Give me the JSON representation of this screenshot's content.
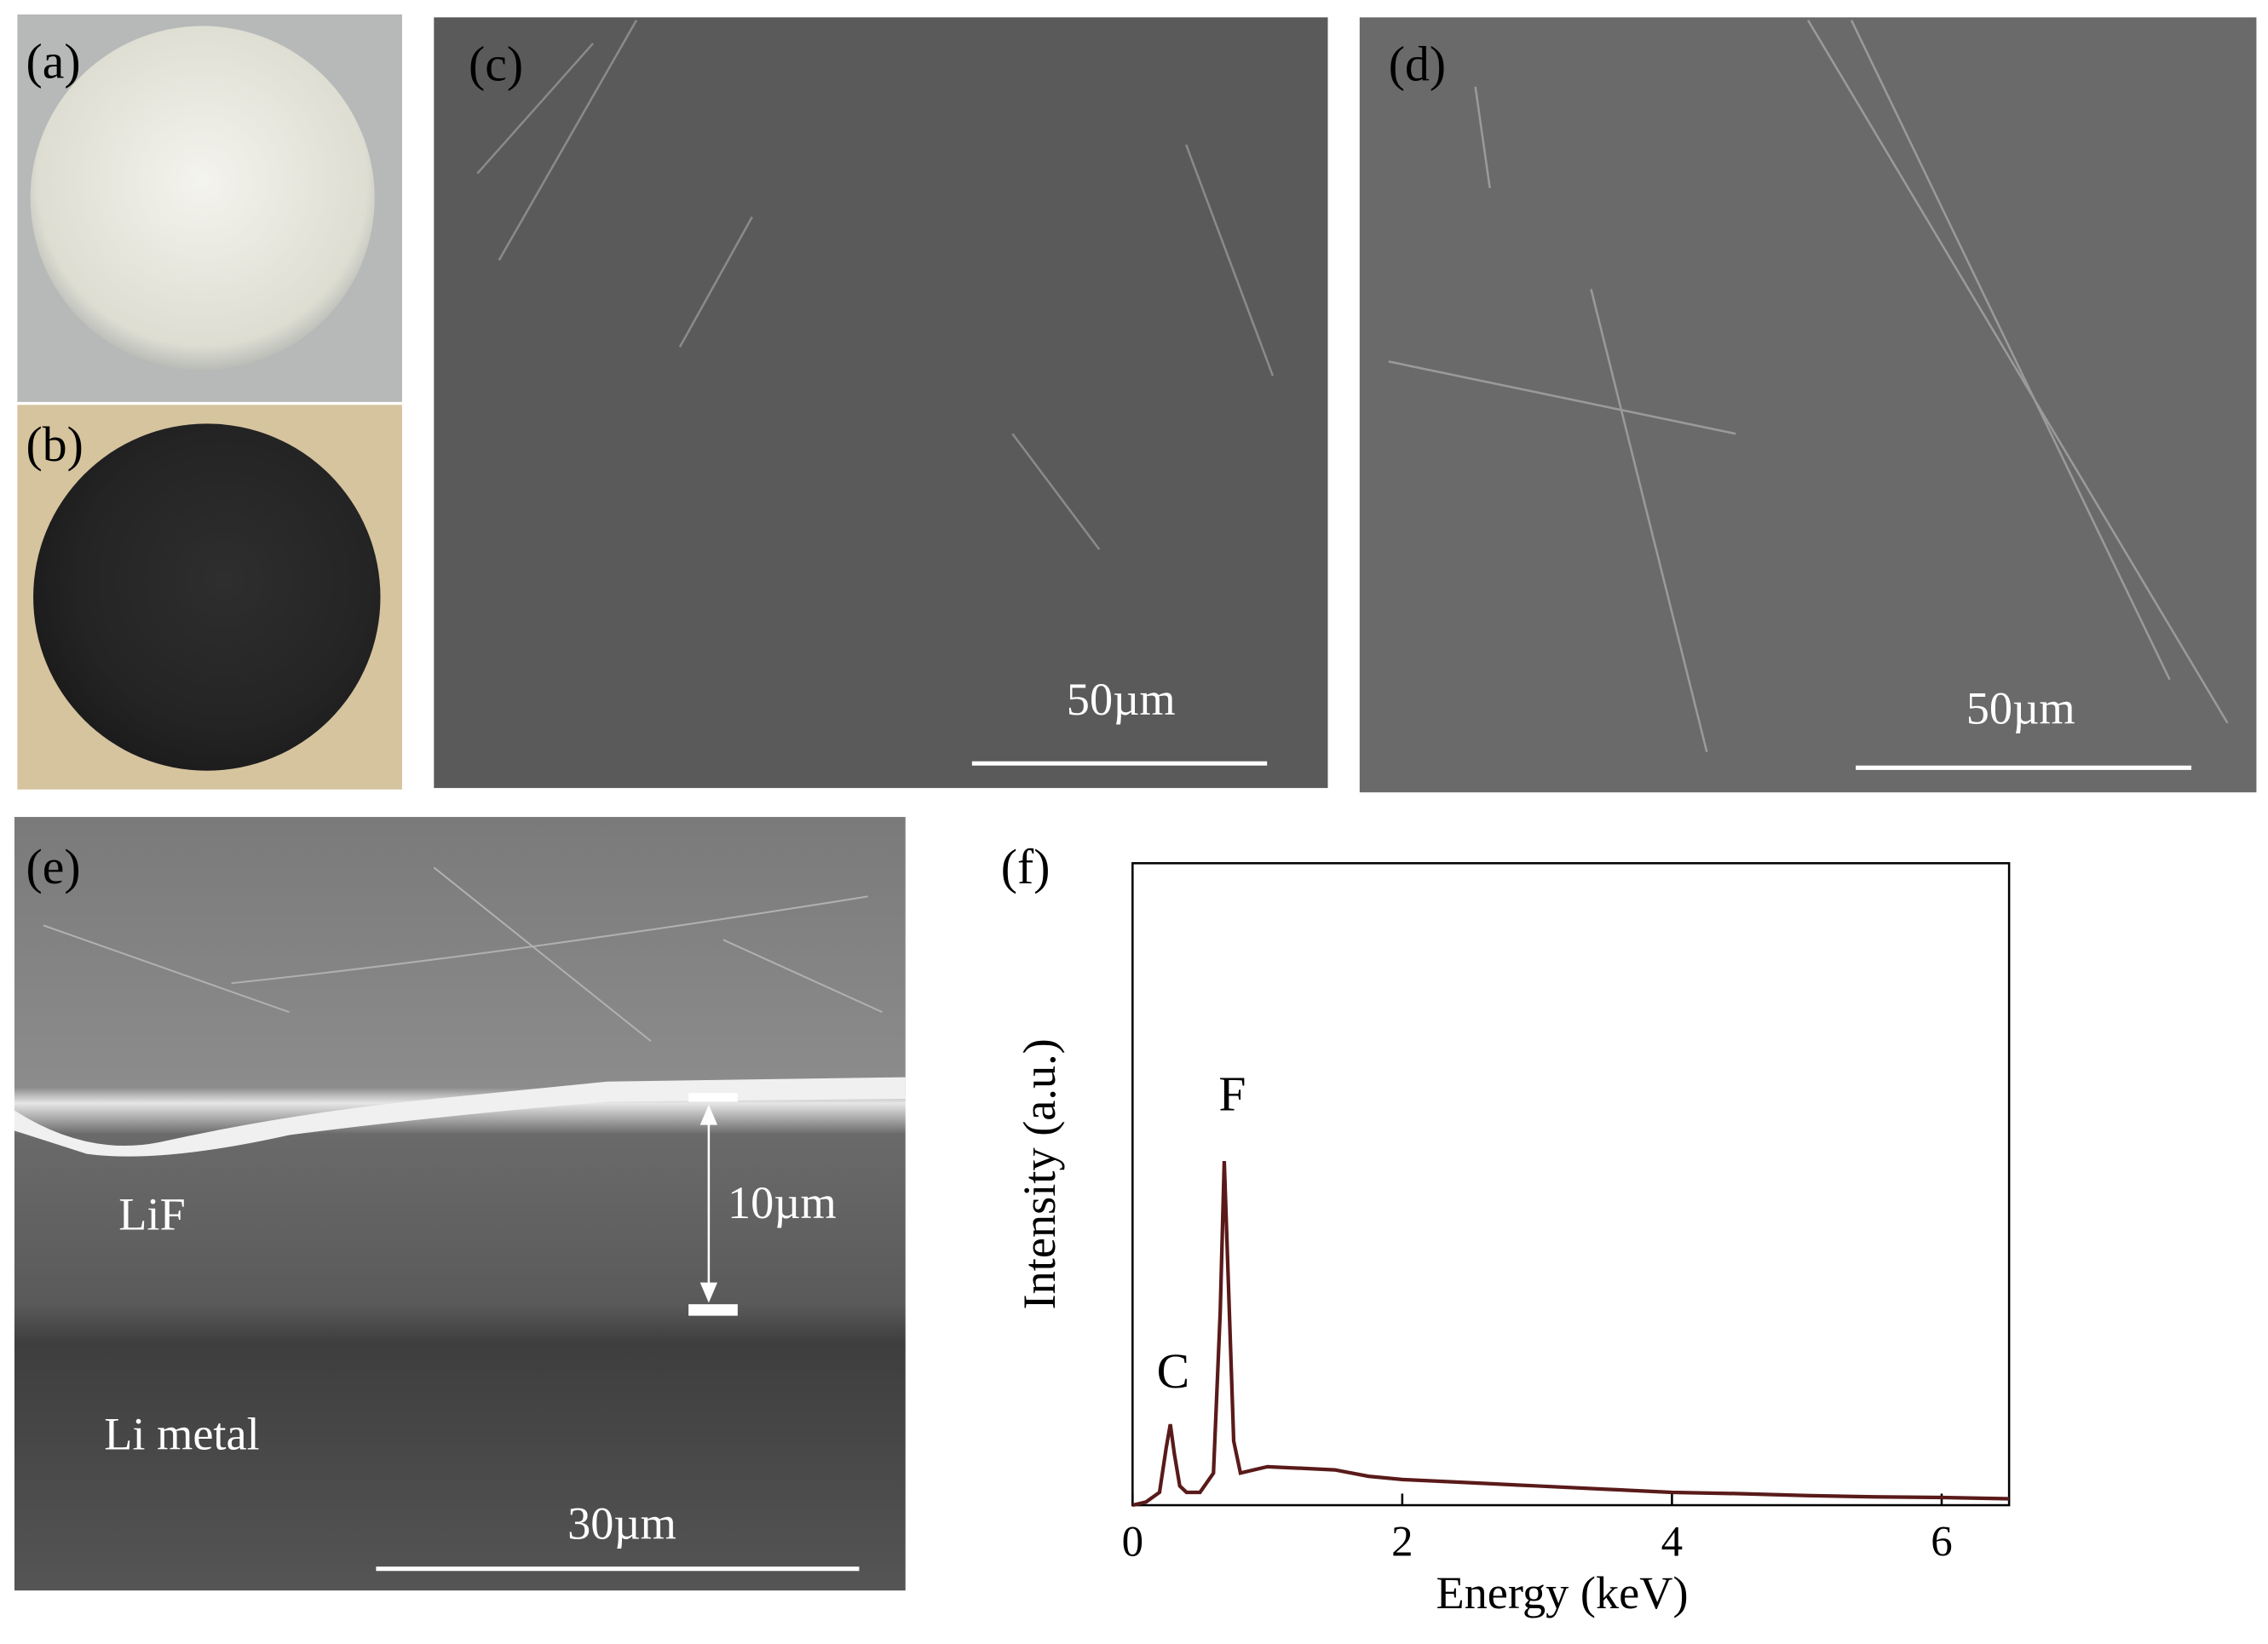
{
  "panels": [
    {
      "label": "(a)"
    },
    {
      "label": "(b)"
    },
    {
      "label": "(c)",
      "scale_bar": "50µm"
    },
    {
      "label": "(d)",
      "scale_bar": "50µm"
    },
    {
      "label": "(e)",
      "scale_bar": "30µm",
      "annotations": [
        "LiF",
        "Li metal",
        "10µm"
      ]
    }
  ],
  "chart_data": {
    "type": "line",
    "title": "(f)",
    "xlabel": "Energy (keV)",
    "ylabel": "Intensity (a.u.)",
    "x": [
      0,
      0.1,
      0.2,
      0.25,
      0.28,
      0.31,
      0.35,
      0.4,
      0.5,
      0.6,
      0.65,
      0.68,
      0.71,
      0.75,
      0.8,
      0.9,
      1.0,
      1.2,
      1.5,
      1.75,
      2,
      2.5,
      3,
      3.5,
      4,
      4.5,
      5,
      5.5,
      6,
      6.5
    ],
    "values": [
      0,
      0.5,
      2,
      9,
      12.6,
      8,
      3,
      2,
      2,
      5,
      30,
      53.6,
      35,
      10,
      5,
      5.5,
      6,
      5.8,
      5.5,
      4.5,
      4,
      3.5,
      3,
      2.5,
      2,
      1.8,
      1.5,
      1.3,
      1.2,
      1.0
    ],
    "color": "#5a1a1a",
    "xlim": [
      0,
      6.5
    ],
    "xticks": [
      0,
      2,
      4,
      6
    ],
    "ylim": [
      0,
      100
    ],
    "annotations": [
      "C",
      "F"
    ]
  }
}
